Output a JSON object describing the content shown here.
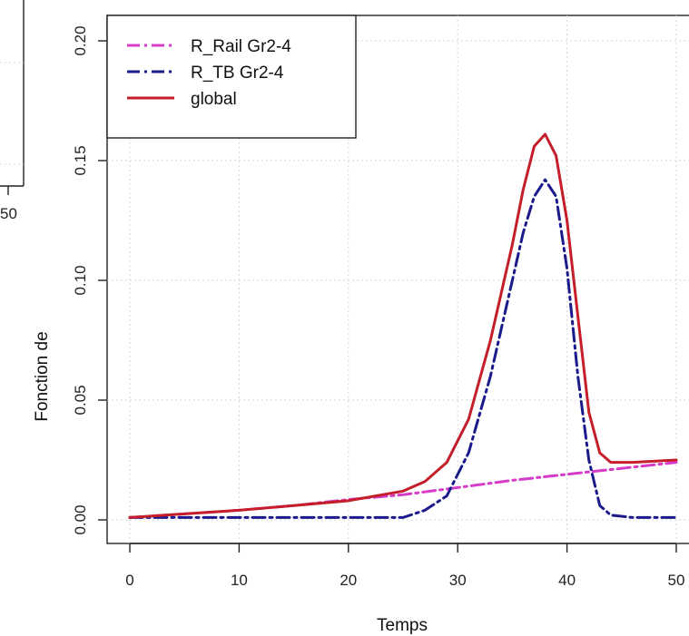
{
  "chart_data": {
    "type": "line",
    "xlabel": "Temps",
    "ylabel": "Fonction de",
    "xlim": [
      0,
      50
    ],
    "ylim": [
      0,
      0.2
    ],
    "x_ticks": [
      0,
      10,
      20,
      30,
      40,
      50
    ],
    "x_tick_labels": [
      "0",
      "10",
      "20",
      "30",
      "40",
      "50"
    ],
    "y_ticks": [
      0,
      0.05,
      0.1,
      0.15,
      0.2
    ],
    "y_tick_labels": [
      "0.00",
      "0.05",
      "0.10",
      "0.15",
      "0.20"
    ],
    "grid": true,
    "legend_position": "top-left",
    "series": [
      {
        "name": "R_Rail Gr2-4",
        "color": "#d63cc8",
        "dash": "dash-dot",
        "x": [
          0,
          5,
          10,
          15,
          20,
          25,
          30,
          35,
          40,
          45,
          50
        ],
        "y": [
          0.001,
          0.0025,
          0.004,
          0.006,
          0.0085,
          0.0105,
          0.0135,
          0.0165,
          0.019,
          0.0215,
          0.024
        ]
      },
      {
        "name": "R_TB Gr2-4",
        "color": "#1a1a8c",
        "dash": "dash-dot",
        "x": [
          0,
          5,
          10,
          15,
          20,
          25,
          27,
          29,
          31,
          33,
          35,
          36,
          37,
          38,
          39,
          40,
          41,
          42,
          43,
          44,
          46,
          50
        ],
        "y": [
          0.001,
          0.001,
          0.001,
          0.001,
          0.001,
          0.001,
          0.004,
          0.01,
          0.028,
          0.06,
          0.1,
          0.12,
          0.135,
          0.142,
          0.135,
          0.105,
          0.06,
          0.025,
          0.006,
          0.002,
          0.001,
          0.001
        ]
      },
      {
        "name": "global",
        "color": "#c41e2a",
        "dash": "solid",
        "x": [
          0,
          5,
          10,
          15,
          20,
          25,
          27,
          29,
          31,
          33,
          35,
          36,
          37,
          38,
          39,
          40,
          41,
          42,
          43,
          44,
          46,
          50
        ],
        "y": [
          0.001,
          0.0025,
          0.004,
          0.006,
          0.008,
          0.012,
          0.016,
          0.024,
          0.042,
          0.075,
          0.115,
          0.138,
          0.156,
          0.161,
          0.152,
          0.125,
          0.085,
          0.045,
          0.028,
          0.024,
          0.024,
          0.025
        ]
      }
    ]
  }
}
